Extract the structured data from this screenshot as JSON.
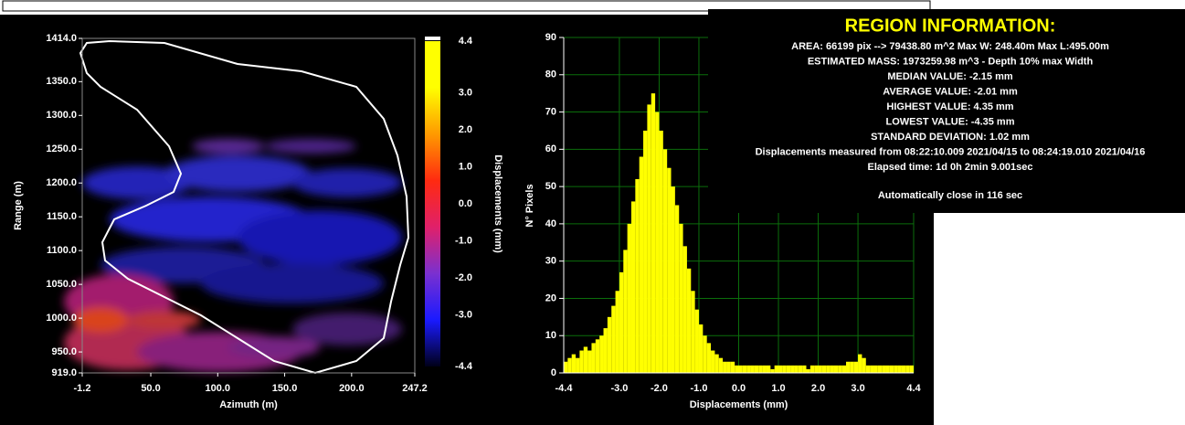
{
  "chart_data": [
    {
      "type": "map",
      "xlabel": "Azimuth (m)",
      "ylabel": "Range (m)",
      "xlim": [
        -1.2,
        247.2
      ],
      "xticks": [
        -1.2,
        {
          "value": 50,
          "label": "50.0"
        },
        {
          "value": 100,
          "label": "100.0"
        },
        {
          "value": 150,
          "label": "150.0"
        },
        {
          "value": 200,
          "label": "200.0"
        },
        247.2
      ],
      "ylim": [
        919,
        1414
      ],
      "yticks": [
        {
          "value": 919,
          "label": "919.0"
        },
        {
          "value": 950,
          "label": "950.0"
        },
        {
          "value": 1000,
          "label": "1000.0"
        },
        {
          "value": 1050,
          "label": "1050.0"
        },
        {
          "value": 1100,
          "label": "1100.0"
        },
        {
          "value": 1150,
          "label": "1150.0"
        },
        {
          "value": 1200,
          "label": "1200.0"
        },
        {
          "value": 1250,
          "label": "1250.0"
        },
        {
          "value": 1300,
          "label": "1300.0"
        },
        {
          "value": 1350,
          "label": "1350.0"
        },
        {
          "value": 1414,
          "label": "1414.0"
        }
      ],
      "colorbar": {
        "label": "Displacements (mm)",
        "lim": [
          -4.4,
          4.4
        ],
        "ticks": [
          4.4,
          {
            "value": 3,
            "label": "3.0"
          },
          {
            "value": 2,
            "label": "2.0"
          },
          {
            "value": 1,
            "label": "1.0"
          },
          {
            "value": 0,
            "label": "0.0"
          },
          {
            "value": -1,
            "label": "-1.0"
          },
          {
            "value": -2,
            "label": "-2.0"
          },
          {
            "value": -3,
            "label": "-3.0"
          },
          -4.4
        ],
        "colors": [
          "#000018",
          "#1a1aff",
          "#7a30d0",
          "#e0206a",
          "#ff2a10",
          "#ff9a00",
          "#ffff00",
          "#ffff00"
        ]
      }
    },
    {
      "type": "histogram",
      "xlabel": "Displacements (mm)",
      "ylabel": "N° Pixels",
      "bins": [
        -4.4,
        -4.3,
        -4.2,
        -4.1,
        -4.0,
        -3.9,
        -3.8,
        -3.7,
        -3.6,
        -3.5,
        -3.4,
        -3.3,
        -3.2,
        -3.1,
        -3.0,
        -2.9,
        -2.8,
        -2.7,
        -2.6,
        -2.5,
        -2.4,
        -2.3,
        -2.2,
        -2.1,
        -2.0,
        -1.9,
        -1.8,
        -1.7,
        -1.6,
        -1.5,
        -1.4,
        -1.3,
        -1.2,
        -1.1,
        -1.0,
        -0.9,
        -0.8,
        -0.7,
        -0.6,
        -0.5,
        -0.4,
        -0.3,
        -0.2,
        -0.1,
        0.0,
        0.1,
        0.2,
        0.3,
        0.4,
        0.5,
        0.6,
        0.7,
        0.8,
        0.9,
        1.0,
        1.1,
        1.2,
        1.3,
        1.4,
        1.5,
        1.6,
        1.7,
        1.8,
        1.9,
        2.0,
        2.1,
        2.2,
        2.3,
        2.4,
        2.5,
        2.6,
        2.7,
        2.8,
        2.9,
        3.0,
        3.1,
        3.2,
        3.3,
        3.4,
        3.5,
        3.6,
        3.7,
        3.8,
        3.9,
        4.0,
        4.1,
        4.2,
        4.3,
        4.4
      ],
      "counts": [
        3,
        4,
        5,
        4,
        6,
        7,
        6,
        8,
        9,
        10,
        12,
        15,
        18,
        22,
        27,
        33,
        40,
        46,
        52,
        58,
        65,
        72,
        75,
        70,
        65,
        60,
        55,
        50,
        45,
        40,
        34,
        28,
        22,
        17,
        13,
        10,
        8,
        6,
        5,
        4,
        3,
        3,
        3,
        2,
        2,
        2,
        2,
        2,
        2,
        2,
        2,
        2,
        1,
        2,
        2,
        2,
        2,
        2,
        2,
        2,
        2,
        1,
        2,
        2,
        2,
        2,
        2,
        2,
        2,
        2,
        2,
        3,
        3,
        3,
        5,
        4,
        2,
        2,
        2,
        2,
        2,
        2,
        2,
        2,
        2,
        2,
        2,
        2
      ],
      "color": "#ffff00",
      "xlim": [
        -4.4,
        4.4
      ],
      "xticks": [
        -4.4,
        {
          "value": -3,
          "label": "-3.0"
        },
        {
          "value": -2,
          "label": "-2.0"
        },
        {
          "value": -1,
          "label": "-1.0"
        },
        {
          "value": 0,
          "label": "0.0"
        },
        {
          "value": 1,
          "label": "1.0"
        },
        {
          "value": 2,
          "label": "2.0"
        },
        {
          "value": 3,
          "label": "3.0"
        },
        4.4
      ],
      "ylim": [
        0,
        90
      ],
      "yticks": [
        0,
        10,
        20,
        30,
        40,
        50,
        60,
        70,
        80,
        90
      ],
      "grid": true,
      "grid_color": "#0b6e0b"
    }
  ],
  "region_info": {
    "title": "REGION INFORMATION:",
    "lines": [
      "AREA: 66199 pix --> 79438.80 m^2   Max W: 248.40m   Max L:495.00m",
      "ESTIMATED MASS: 1973259.98 m^3 - Depth 10% max Width",
      "MEDIAN VALUE: -2.15 mm",
      "AVERAGE VALUE: -2.01 mm",
      "HIGHEST VALUE: 4.35 mm",
      "LOWEST VALUE: -4.35 mm",
      "STANDARD DEVIATION: 1.02 mm",
      "Displacements measured from 08:22:10.009 2021/04/15 to 08:24:19.010 2021/04/16",
      "Elapsed time: 1d 0h 2min 9.001sec"
    ],
    "footer": "Automatically close in 116 sec"
  }
}
